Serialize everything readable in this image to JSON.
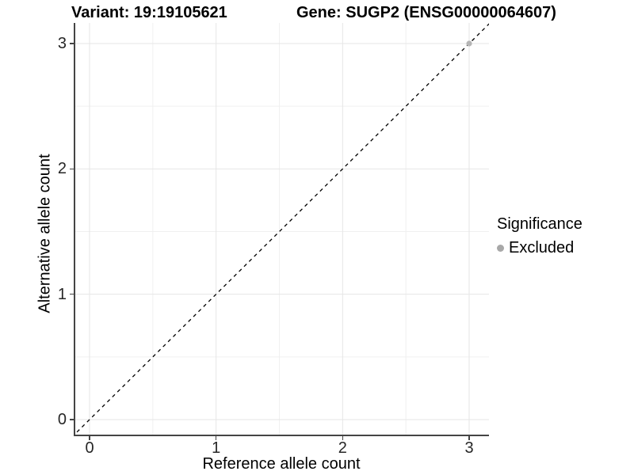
{
  "titles": {
    "left": "Variant: 19:19105621",
    "right": "Gene: SUGP2 (ENSG00000064607)"
  },
  "chart_data": {
    "type": "scatter",
    "xlabel": "Reference allele count",
    "ylabel": "Alternative allele count",
    "xticks": [
      0,
      1,
      2,
      3
    ],
    "yticks": [
      0,
      1,
      2,
      3
    ],
    "xminor": [
      0.5,
      1.5,
      2.5
    ],
    "yminor": [
      0.5,
      1.5,
      2.5
    ],
    "xlim": [
      -0.13,
      3.16
    ],
    "ylim": [
      -0.13,
      3.16
    ],
    "grid": "major+minor",
    "points": [
      {
        "x": 3,
        "y": 3,
        "series": "Excluded",
        "color": "#b5b5b5"
      }
    ],
    "reference_line": {
      "slope": 1,
      "intercept": 0,
      "style": "dashed",
      "color": "#000000"
    },
    "legend": {
      "title": "Significance",
      "position": "right",
      "entries": [
        {
          "label": "Excluded",
          "color": "#a8a8a8"
        }
      ]
    },
    "colors": {
      "grid_major": "#e6e6e6",
      "grid_minor": "#f0f0f0",
      "axis_line": "#444444",
      "tick_text": "#262626"
    }
  }
}
